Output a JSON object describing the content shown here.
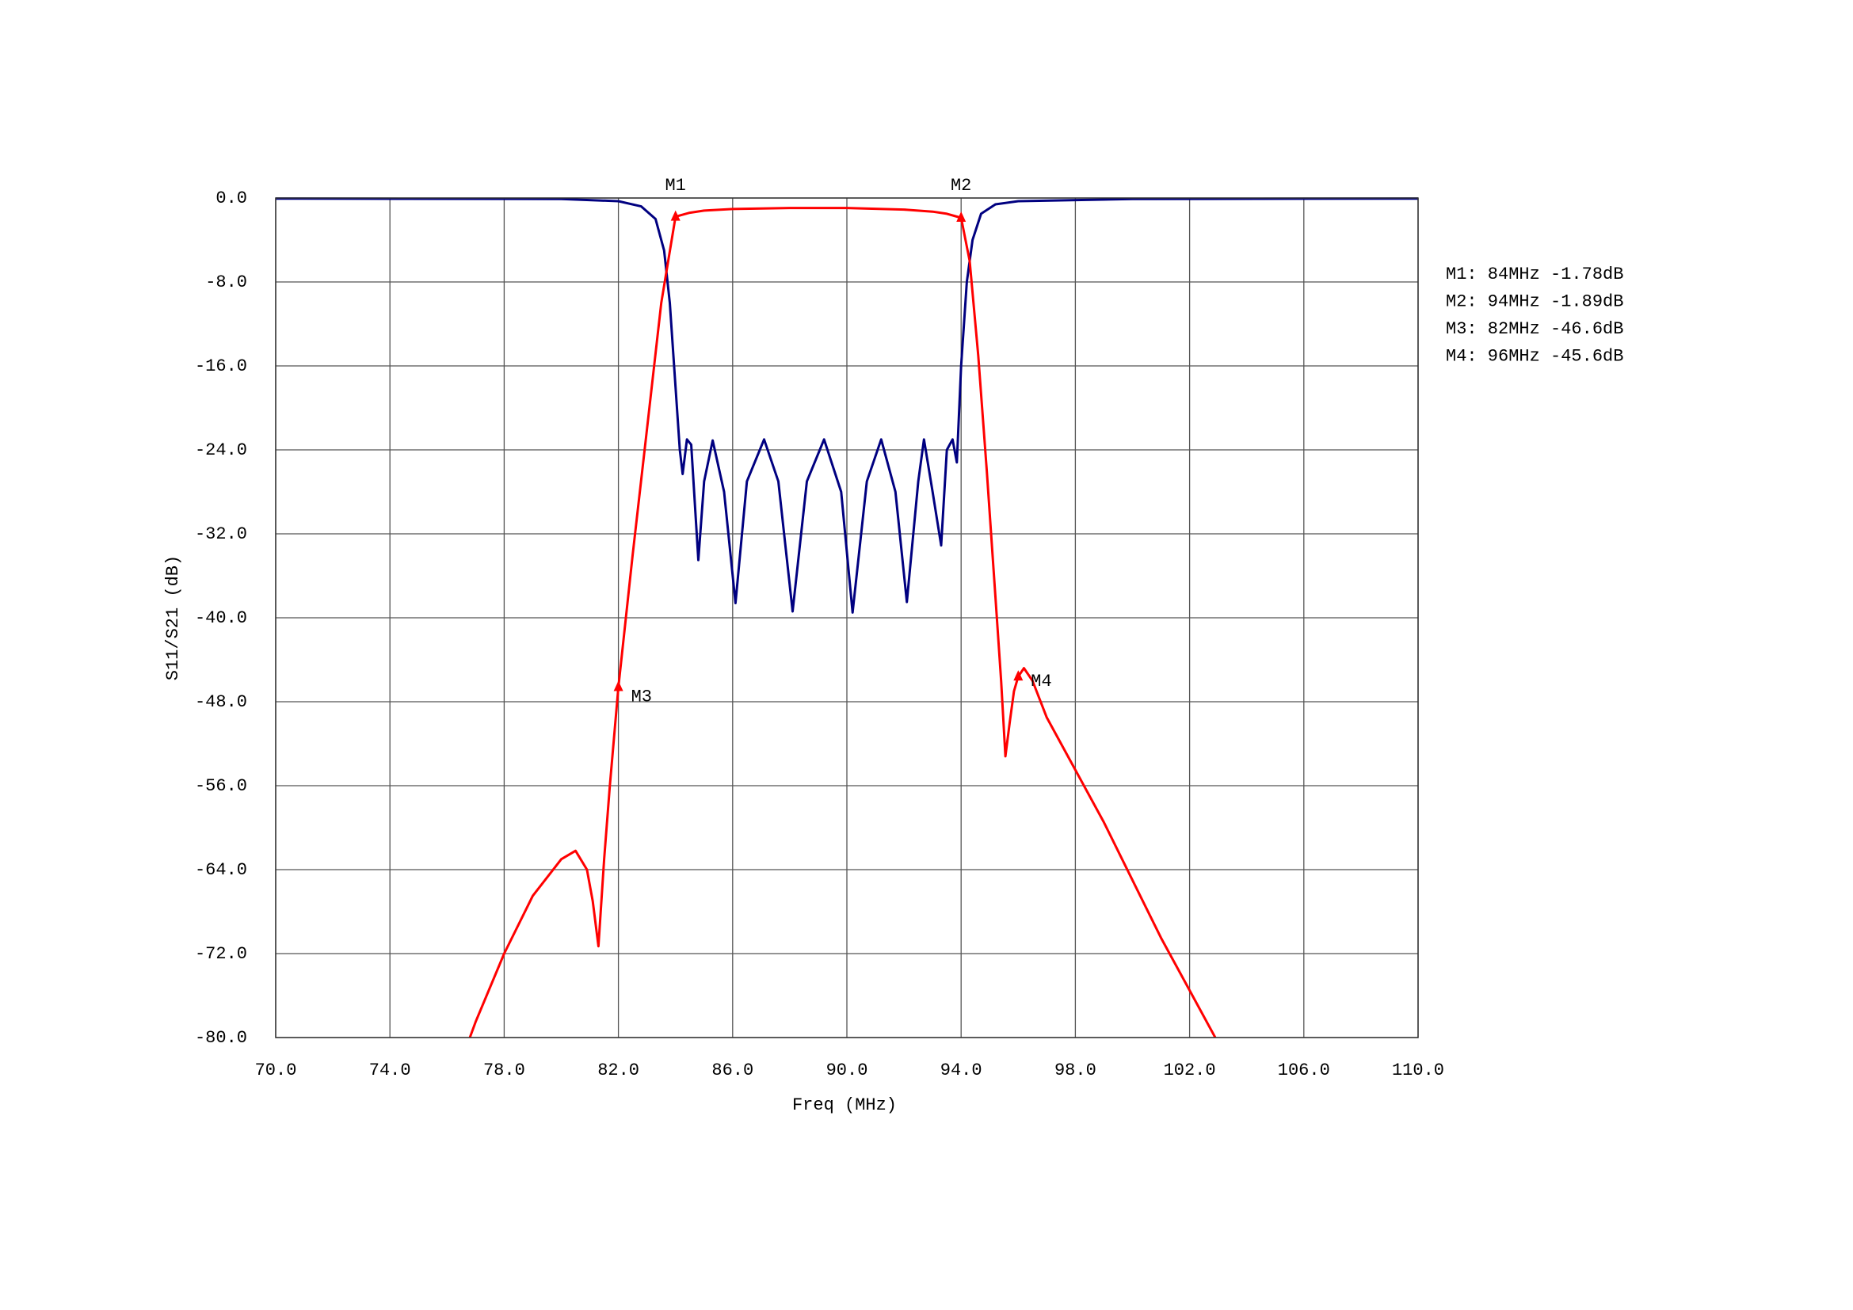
{
  "chart_data": {
    "type": "line",
    "x_label": "Freq (MHz)",
    "y_label": "S11/S21 (dB)",
    "xlim": [
      70,
      110
    ],
    "ylim": [
      -80,
      0
    ],
    "xticks": [
      {
        "value": 70,
        "label": "70.0"
      },
      {
        "value": 74,
        "label": "74.0"
      },
      {
        "value": 78,
        "label": "78.0"
      },
      {
        "value": 82,
        "label": "82.0"
      },
      {
        "value": 86,
        "label": "86.0"
      },
      {
        "value": 90,
        "label": "90.0"
      },
      {
        "value": 94,
        "label": "94.0"
      },
      {
        "value": 98,
        "label": "98.0"
      },
      {
        "value": 102,
        "label": "102.0"
      },
      {
        "value": 106,
        "label": "106.0"
      },
      {
        "value": 110,
        "label": "110.0"
      }
    ],
    "yticks": [
      {
        "value": 0,
        "label": "0.0"
      },
      {
        "value": -8,
        "label": "-8.0"
      },
      {
        "value": -16,
        "label": "-16.0"
      },
      {
        "value": -24,
        "label": "-24.0"
      },
      {
        "value": -32,
        "label": "-32.0"
      },
      {
        "value": -40,
        "label": "-40.0"
      },
      {
        "value": -48,
        "label": "-48.0"
      },
      {
        "value": -56,
        "label": "-56.0"
      },
      {
        "value": -64,
        "label": "-64.0"
      },
      {
        "value": -72,
        "label": "-72.0"
      },
      {
        "value": -80,
        "label": "-80.0"
      }
    ],
    "grid": true,
    "series": [
      {
        "color": "#000080",
        "x": [
          70,
          80,
          82,
          82.8,
          83.3,
          83.6,
          83.8,
          84.0,
          84.15,
          84.25,
          84.4,
          84.55,
          84.8,
          85.0,
          85.3,
          85.7,
          86.1,
          86.5,
          87.1,
          87.6,
          88.1,
          88.6,
          89.2,
          89.8,
          90.2,
          90.7,
          91.2,
          91.7,
          92.1,
          92.5,
          92.7,
          93.0,
          93.3,
          93.5,
          93.7,
          93.85,
          94.0,
          94.2,
          94.4,
          94.7,
          95.2,
          96,
          100,
          110
        ],
        "values": [
          -0.05,
          -0.1,
          -0.3,
          -0.8,
          -2,
          -5,
          -10,
          -18,
          -24,
          -26.3,
          -23,
          -23.5,
          -34.5,
          -27,
          -23.1,
          -28,
          -38.6,
          -27,
          -23,
          -27,
          -39.4,
          -27,
          -23,
          -28,
          -39.5,
          -27,
          -23,
          -28,
          -38.5,
          -27,
          -23,
          -28,
          -33.1,
          -24,
          -23,
          -25.2,
          -16,
          -8,
          -4,
          -1.5,
          -0.6,
          -0.3,
          -0.1,
          -0.05
        ]
      },
      {
        "color": "#ff0000",
        "x": [
          76.8,
          77.0,
          78.0,
          79.0,
          80.0,
          80.5,
          80.9,
          81.1,
          81.3,
          81.5,
          81.7,
          82.0,
          82.5,
          83.0,
          83.5,
          84.0,
          84.5,
          85,
          86,
          88,
          90,
          92,
          93,
          93.5,
          94.0,
          94.3,
          94.6,
          94.9,
          95.2,
          95.4,
          95.55,
          95.7,
          95.85,
          96.0,
          96.2,
          96.5,
          97,
          98,
          99,
          100,
          101,
          102,
          102.9
        ],
        "values": [
          -80,
          -78.5,
          -72,
          -66.5,
          -63,
          -62.2,
          -64,
          -67,
          -71.3,
          -63,
          -56,
          -46.6,
          -34,
          -22,
          -10,
          -1.78,
          -1.4,
          -1.2,
          -1.05,
          -0.95,
          -0.95,
          -1.1,
          -1.3,
          -1.5,
          -1.89,
          -6,
          -15,
          -26,
          -38,
          -46,
          -53.2,
          -50,
          -47,
          -45.6,
          -44.8,
          -46,
          -49.5,
          -54.5,
          -59.5,
          -65,
          -70.5,
          -75.5,
          -80
        ]
      }
    ],
    "markers": [
      {
        "name": "M1",
        "x": 84,
        "y": -1.78,
        "label": "M1: 84MHz -1.78dB"
      },
      {
        "name": "M2",
        "x": 94,
        "y": -1.89,
        "label": "M2: 94MHz -1.89dB"
      },
      {
        "name": "M3",
        "x": 82,
        "y": -46.6,
        "label": "M3: 82MHz -46.6dB"
      },
      {
        "name": "M4",
        "x": 96,
        "y": -45.6,
        "label": "M4: 96MHz -45.6dB"
      }
    ]
  }
}
